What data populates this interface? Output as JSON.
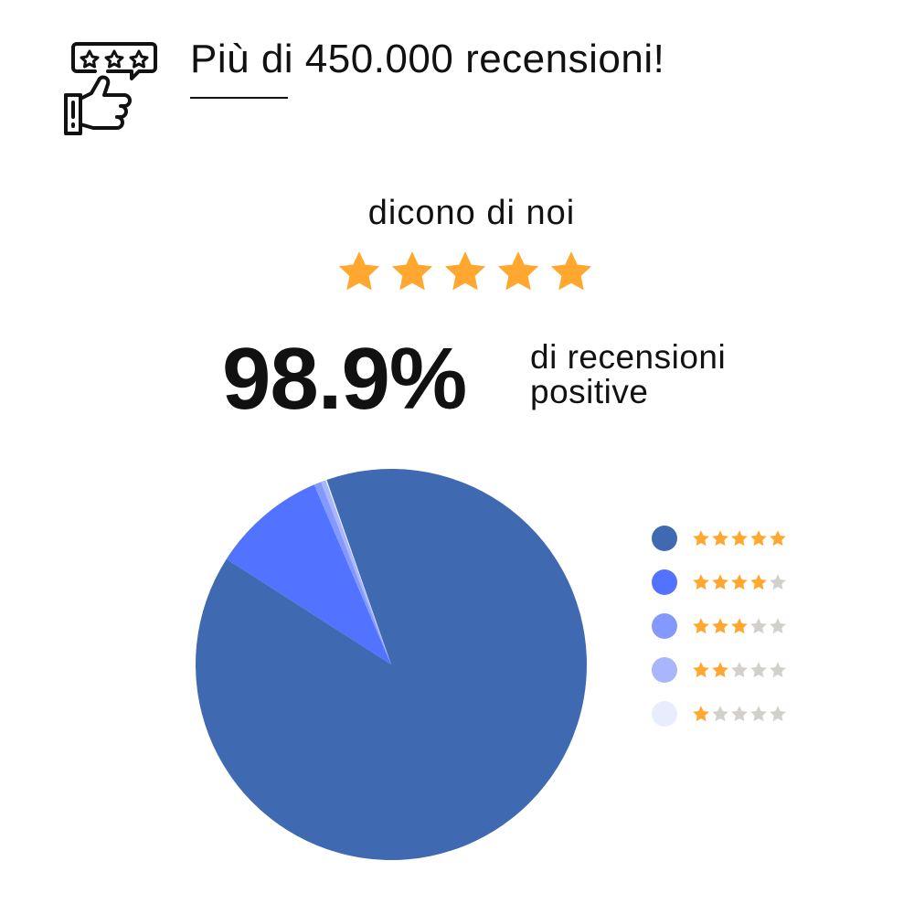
{
  "header": {
    "title": "Più di 450.000 recensioni!",
    "icon": "thumbs-up-review-icon"
  },
  "subtitle": "dicono di noi",
  "rating_stars": 5,
  "headline": {
    "value": "98.9%",
    "label_line1": "di recensioni",
    "label_line2": "positive"
  },
  "colors": {
    "star": "#ffa72f",
    "star_empty": "#d3d0cc"
  },
  "chart_data": {
    "type": "pie",
    "legend_placement": "right",
    "slices": [
      {
        "stars": 5,
        "value": 89.4,
        "color": "#3f69b0"
      },
      {
        "stars": 4,
        "value": 9.5,
        "color": "#5273ff"
      },
      {
        "stars": 3,
        "value": 0.6,
        "color": "#8499ff"
      },
      {
        "stars": 2,
        "value": 0.4,
        "color": "#a8b6fb"
      },
      {
        "stars": 1,
        "value": 0.1,
        "color": "#e8edfd"
      }
    ]
  }
}
